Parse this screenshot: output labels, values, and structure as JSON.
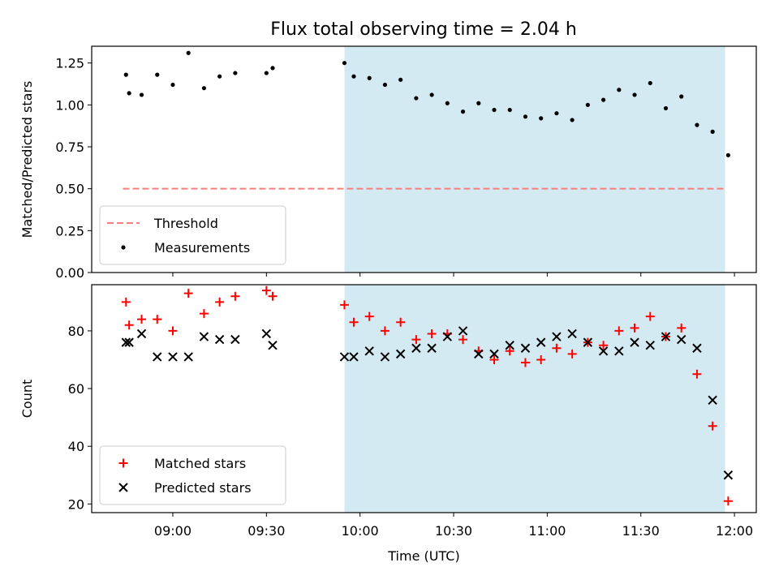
{
  "chart_data": [
    {
      "type": "scatter",
      "title": "Flux total observing time = 2.04 h",
      "xlabel": "",
      "ylabel": "Matched/Predicted stars",
      "x_unit": "time (UTC)",
      "xlim": [
        "08:34",
        "12:07"
      ],
      "ylim": [
        0,
        1.35
      ],
      "yticks": [
        "0.00",
        "0.25",
        "0.50",
        "0.75",
        "1.00",
        "1.25"
      ],
      "grid": false,
      "shaded_region": {
        "x_start": "09:55",
        "x_end": "11:57",
        "color": "#d4eaf2"
      },
      "threshold": {
        "name": "Threshold",
        "value": 0.5,
        "x_start": "08:44",
        "x_end": "11:57",
        "color": "#f77f7f",
        "style": "dashed"
      },
      "legend_position": "lower left",
      "series": [
        {
          "name": "Measurements",
          "color": "#000000",
          "marker": "dot",
          "x": [
            "08:45",
            "08:46",
            "08:50",
            "08:55",
            "09:00",
            "09:05",
            "09:10",
            "09:15",
            "09:20",
            "09:30",
            "09:32",
            "09:55",
            "09:58",
            "10:03",
            "10:08",
            "10:13",
            "10:18",
            "10:23",
            "10:28",
            "10:33",
            "10:38",
            "10:43",
            "10:48",
            "10:53",
            "10:58",
            "11:03",
            "11:08",
            "11:13",
            "11:18",
            "11:23",
            "11:28",
            "11:33",
            "11:38",
            "11:43",
            "11:48",
            "11:53",
            "11:58"
          ],
          "y": [
            1.18,
            1.07,
            1.06,
            1.18,
            1.12,
            1.31,
            1.1,
            1.17,
            1.19,
            1.19,
            1.22,
            1.25,
            1.17,
            1.16,
            1.12,
            1.15,
            1.04,
            1.06,
            1.01,
            0.96,
            1.01,
            0.97,
            0.97,
            0.93,
            0.92,
            0.95,
            0.91,
            1.0,
            1.03,
            1.09,
            1.06,
            1.13,
            0.98,
            1.05,
            0.88,
            0.84,
            0.7
          ]
        }
      ]
    },
    {
      "type": "scatter",
      "title": "",
      "xlabel": "Time (UTC)",
      "ylabel": "Count",
      "xlim": [
        "08:34",
        "12:07"
      ],
      "ylim": [
        17,
        96
      ],
      "yticks": [
        "20",
        "40",
        "60",
        "80"
      ],
      "xticks": [
        "09:00",
        "09:30",
        "10:00",
        "10:30",
        "11:00",
        "11:30",
        "12:00"
      ],
      "grid": false,
      "shaded_region": {
        "x_start": "09:55",
        "x_end": "11:57",
        "color": "#d4eaf2"
      },
      "legend_position": "lower left",
      "series": [
        {
          "name": "Matched stars",
          "color": "#ff0000",
          "marker": "plus",
          "x": [
            "08:45",
            "08:46",
            "08:50",
            "08:55",
            "09:00",
            "09:05",
            "09:10",
            "09:15",
            "09:20",
            "09:30",
            "09:32",
            "09:55",
            "09:58",
            "10:03",
            "10:08",
            "10:13",
            "10:18",
            "10:23",
            "10:28",
            "10:33",
            "10:38",
            "10:43",
            "10:48",
            "10:53",
            "10:58",
            "11:03",
            "11:08",
            "11:13",
            "11:18",
            "11:23",
            "11:28",
            "11:33",
            "11:38",
            "11:43",
            "11:48",
            "11:53",
            "11:58"
          ],
          "y": [
            90,
            82,
            84,
            84,
            80,
            93,
            86,
            90,
            92,
            94,
            92,
            89,
            83,
            85,
            80,
            83,
            77,
            79,
            79,
            77,
            73,
            70,
            73,
            69,
            70,
            74,
            72,
            76,
            75,
            80,
            81,
            85,
            78,
            81,
            65,
            47,
            21
          ]
        },
        {
          "name": "Predicted stars",
          "color": "#000000",
          "marker": "x",
          "x": [
            "08:45",
            "08:46",
            "08:50",
            "08:55",
            "09:00",
            "09:05",
            "09:10",
            "09:15",
            "09:20",
            "09:30",
            "09:32",
            "09:55",
            "09:58",
            "10:03",
            "10:08",
            "10:13",
            "10:18",
            "10:23",
            "10:28",
            "10:33",
            "10:38",
            "10:43",
            "10:48",
            "10:53",
            "10:58",
            "11:03",
            "11:08",
            "11:13",
            "11:18",
            "11:23",
            "11:28",
            "11:33",
            "11:38",
            "11:43",
            "11:48",
            "11:53",
            "11:58"
          ],
          "y": [
            76,
            76,
            79,
            71,
            71,
            71,
            78,
            77,
            77,
            79,
            75,
            71,
            71,
            73,
            71,
            72,
            74,
            74,
            78,
            80,
            72,
            72,
            75,
            74,
            76,
            78,
            79,
            76,
            73,
            73,
            76,
            75,
            78,
            77,
            74,
            56,
            30
          ]
        }
      ]
    }
  ]
}
